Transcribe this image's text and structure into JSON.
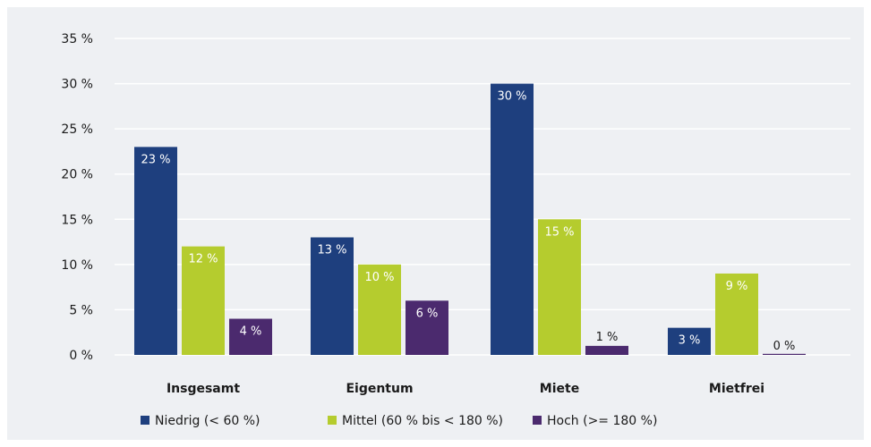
{
  "chart_data": {
    "type": "bar",
    "categories": [
      "Insgesamt",
      "Eigentum",
      "Miete",
      "Mietfrei"
    ],
    "series": [
      {
        "name": "Niedrig (< 60 %)",
        "color": "#1e3f7e",
        "values": [
          23,
          13,
          30,
          3
        ],
        "labels": [
          "23 %",
          "13 %",
          "30 %",
          "3 %"
        ]
      },
      {
        "name": "Mittel (60 % bis < 180 %)",
        "color": "#b5cc2e",
        "values": [
          12,
          10,
          15,
          9
        ],
        "labels": [
          "12 %",
          "10 %",
          "15 %",
          "9 %"
        ]
      },
      {
        "name": "Hoch (>= 180 %)",
        "color": "#4b2a6e",
        "values": [
          4,
          6,
          1,
          0
        ],
        "labels": [
          "4 %",
          "6 %",
          "1 %",
          "0 %"
        ]
      }
    ],
    "yticks": [
      "0 %",
      "5 %",
      "10 %",
      "15 %",
      "20 %",
      "25 %",
      "30 %",
      "35 %"
    ],
    "ylim": [
      0,
      35
    ],
    "grid": true,
    "legend": "bottom",
    "background": "#eef0f3"
  }
}
